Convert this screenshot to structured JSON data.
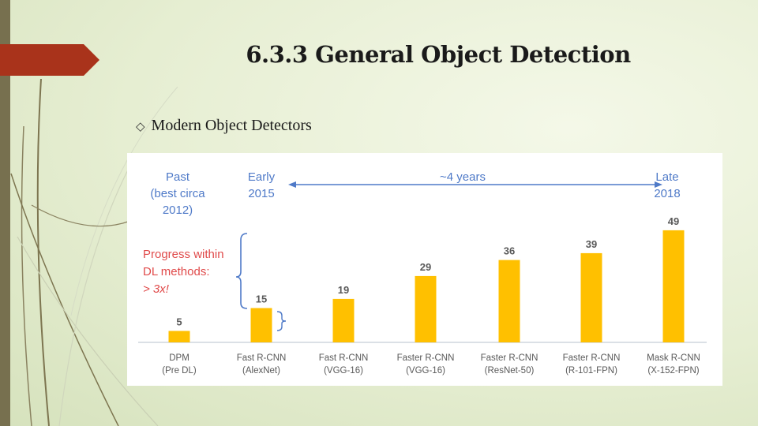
{
  "slide": {
    "title": "6.3.3 General Object Detection",
    "bullet": "Modern Object Detectors",
    "accent_color": "#a9331b",
    "strip_color": "#77704f"
  },
  "chart_data": {
    "type": "bar",
    "categories": [
      [
        "DPM",
        "(Pre DL)"
      ],
      [
        "Fast R-CNN",
        "(AlexNet)"
      ],
      [
        "Fast R-CNN",
        "(VGG-16)"
      ],
      [
        "Faster R-CNN",
        "(VGG-16)"
      ],
      [
        "Faster R-CNN",
        "(ResNet-50)"
      ],
      [
        "Faster R-CNN",
        "(R-101-FPN)"
      ],
      [
        "Mask R-CNN",
        "(X-152-FPN)"
      ]
    ],
    "values": [
      5,
      15,
      19,
      29,
      36,
      39,
      49
    ],
    "bar_color": "#ffc000",
    "label_color": "#595959",
    "axis_color": "#cfd5dd",
    "annotations": {
      "past": [
        "Past",
        "(best circa",
        "2012)"
      ],
      "early": [
        "Early",
        "2015"
      ],
      "span": "~4 years",
      "late": [
        "Late",
        "2018"
      ],
      "progress": [
        "Progress within",
        "DL methods:",
        "> 3x!"
      ],
      "timeline_color": "#4f7ac8",
      "progress_color": "#e04a4a"
    }
  }
}
